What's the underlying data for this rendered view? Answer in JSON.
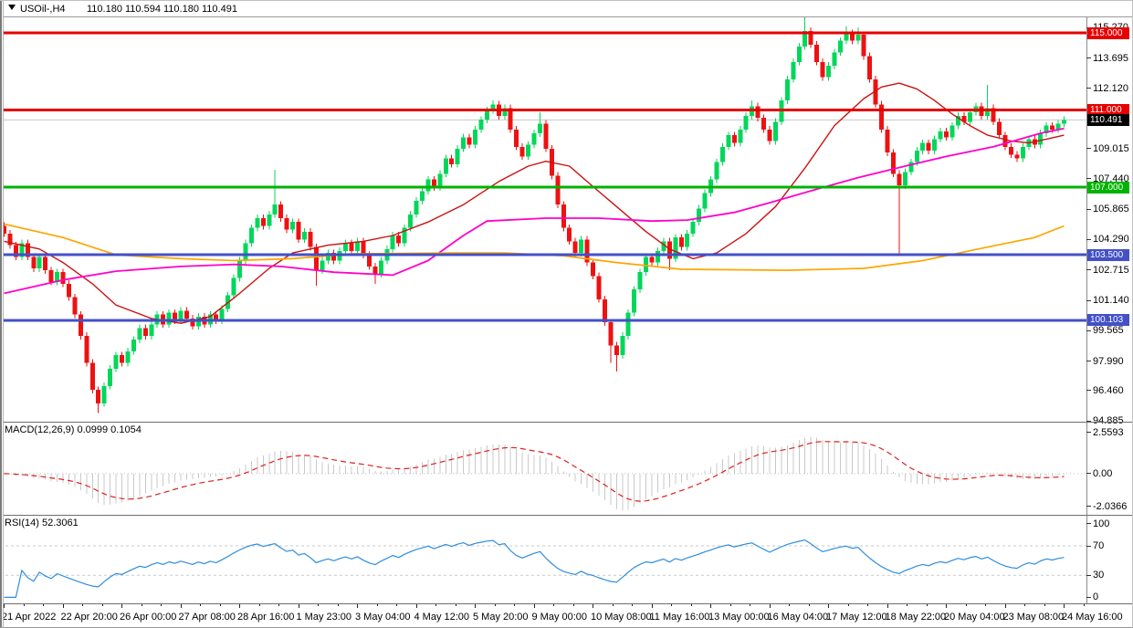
{
  "header": {
    "symbol": "USOil-,H4",
    "ohlc": "110.180 110.594 110.180 110.491"
  },
  "colors": {
    "bull_candle": "#00d75a",
    "bear_candle": "#ee1111",
    "bid_line": "#c8c8c8",
    "histogram": "#c8c8c8",
    "macd_signal": "#e02020",
    "rsi_line": "#2e8de0",
    "rsi_levels": "#c8c8c8",
    "resistance_red": "#e60000",
    "support_green": "#00b300",
    "support_blue": "#4350c8",
    "bid_badge": "#000000"
  },
  "chart_data": [
    {
      "type": "candlestick",
      "title": "USOil-,H4",
      "ylim": [
        94.85,
        115.81
      ],
      "y_ticks": [
        {
          "label": "115.270",
          "value": 115.27
        },
        {
          "label": "113.695",
          "value": 113.695
        },
        {
          "label": "112.120",
          "value": 112.12
        },
        {
          "label": "109.015",
          "value": 109.015
        },
        {
          "label": "107.440",
          "value": 107.44
        },
        {
          "label": "105.865",
          "value": 105.865
        },
        {
          "label": "104.290",
          "value": 104.29
        },
        {
          "label": "102.715",
          "value": 102.715
        },
        {
          "label": "101.140",
          "value": 101.14
        },
        {
          "label": "99.565",
          "value": 99.565
        },
        {
          "label": "97.990",
          "value": 97.99
        },
        {
          "label": "96.460",
          "value": 96.46
        },
        {
          "label": "94.885",
          "value": 94.885
        }
      ],
      "levels": [
        {
          "label": "115.000",
          "value": 115.0,
          "color": "#e60000"
        },
        {
          "label": "111.000",
          "value": 111.0,
          "color": "#e60000"
        },
        {
          "label": "107.000",
          "value": 107.0,
          "color": "#00b300"
        },
        {
          "label": "103.500",
          "value": 103.5,
          "color": "#4350c8"
        },
        {
          "label": "100.103",
          "value": 100.103,
          "color": "#4350c8"
        }
      ],
      "bid": {
        "label": "110.491",
        "value": 110.491
      },
      "first_open": 105.0,
      "default_wick": 0.18,
      "closes": [
        104.6,
        104.0,
        103.4,
        104.1,
        103.4,
        102.8,
        103.4,
        102.7,
        102.1,
        102.6,
        102.0,
        101.3,
        100.4,
        99.3,
        97.9,
        96.5,
        95.8,
        96.7,
        97.6,
        98.3,
        97.9,
        98.5,
        99.1,
        99.7,
        99.3,
        99.9,
        100.4,
        99.9,
        100.5,
        100.1,
        100.6,
        100.2,
        99.8,
        100.3,
        99.9,
        100.4,
        100.1,
        100.7,
        101.4,
        102.3,
        103.2,
        104.1,
        104.9,
        105.4,
        105.0,
        105.6,
        106.1,
        105.4,
        104.8,
        105.2,
        104.3,
        104.7,
        103.9,
        102.7,
        103.2,
        103.6,
        103.2,
        103.7,
        104.1,
        103.7,
        104.2,
        103.5,
        102.9,
        102.5,
        103.2,
        103.8,
        104.5,
        104.1,
        104.9,
        105.6,
        106.3,
        106.8,
        107.4,
        107.0,
        107.7,
        108.5,
        108.2,
        109.0,
        109.6,
        109.2,
        110.0,
        110.5,
        111.0,
        111.3,
        110.7,
        111.1,
        110.0,
        109.1,
        108.6,
        109.2,
        109.8,
        110.3,
        109.0,
        107.6,
        106.1,
        104.9,
        104.2,
        103.6,
        104.3,
        103.1,
        102.4,
        101.2,
        100.0,
        98.8,
        98.3,
        99.3,
        100.5,
        101.7,
        102.6,
        103.4,
        103.1,
        103.7,
        104.2,
        103.3,
        104.4,
        103.9,
        104.6,
        105.2,
        105.9,
        106.7,
        107.4,
        108.3,
        109.1,
        109.7,
        109.3,
        110.0,
        110.7,
        111.2,
        110.6,
        110.0,
        109.4,
        110.4,
        111.5,
        112.6,
        113.5,
        114.3,
        115.1,
        114.4,
        113.5,
        112.7,
        113.3,
        114.0,
        114.6,
        115.0,
        114.6,
        114.9,
        113.8,
        112.6,
        111.3,
        110.0,
        108.8,
        107.7,
        107.1,
        107.8,
        108.3,
        108.9,
        109.3,
        108.9,
        109.5,
        109.9,
        109.6,
        110.2,
        110.7,
        110.4,
        110.9,
        111.2,
        110.7,
        111.1,
        110.4,
        109.7,
        109.1,
        108.7,
        108.5,
        109.1,
        109.5,
        109.2,
        109.8,
        110.2,
        110.0,
        110.3,
        110.491
      ],
      "wick_overrides": {
        "16": {
          "low": 95.3
        },
        "46": {
          "high": 107.9
        },
        "53": {
          "low": 101.9
        },
        "63": {
          "low": 102.0
        },
        "83": {
          "high": 111.5
        },
        "91": {
          "high": 110.9
        },
        "103": {
          "low": 97.9
        },
        "104": {
          "low": 97.45
        },
        "113": {
          "low": 102.7
        },
        "127": {
          "high": 111.5
        },
        "136": {
          "high": 115.8
        },
        "143": {
          "high": 115.35
        },
        "145": {
          "high": 115.3
        },
        "152": {
          "low": 103.55
        },
        "167": {
          "high": 112.3
        }
      },
      "moving_averages": [
        {
          "name": "fast-ma",
          "color": "#cc1111",
          "points": [
            [
              0,
              104.2
            ],
            [
              6,
              103.8
            ],
            [
              10,
              103.1
            ],
            [
              15,
              102.0
            ],
            [
              19,
              100.9
            ],
            [
              25,
              100.2
            ],
            [
              30,
              99.95
            ],
            [
              35,
              100.3
            ],
            [
              40,
              101.5
            ],
            [
              45,
              102.8
            ],
            [
              49,
              103.6
            ],
            [
              55,
              104.0
            ],
            [
              61,
              104.2
            ],
            [
              66,
              104.5
            ],
            [
              72,
              105.2
            ],
            [
              78,
              106.1
            ],
            [
              84,
              107.3
            ],
            [
              89,
              108.1
            ],
            [
              92,
              108.35
            ],
            [
              96,
              108.1
            ],
            [
              99,
              107.3
            ],
            [
              104,
              106.0
            ],
            [
              109,
              104.7
            ],
            [
              113,
              103.8
            ],
            [
              117,
              103.3
            ],
            [
              121,
              103.6
            ],
            [
              126,
              104.6
            ],
            [
              131,
              106.0
            ],
            [
              136,
              108.0
            ],
            [
              141,
              110.2
            ],
            [
              146,
              111.6
            ],
            [
              149,
              112.2
            ],
            [
              152,
              112.4
            ],
            [
              155,
              112.1
            ],
            [
              158,
              111.5
            ],
            [
              161,
              110.8
            ],
            [
              164,
              110.2
            ],
            [
              167,
              109.7
            ],
            [
              171,
              109.4
            ],
            [
              174,
              109.3
            ],
            [
              177,
              109.5
            ],
            [
              180,
              109.7
            ]
          ]
        },
        {
          "name": "medium-ma",
          "color": "#ff00cc",
          "points": [
            [
              0,
              101.5
            ],
            [
              10,
              102.2
            ],
            [
              19,
              102.65
            ],
            [
              30,
              102.9
            ],
            [
              39,
              103.0
            ],
            [
              47,
              102.9
            ],
            [
              56,
              102.6
            ],
            [
              66,
              102.45
            ],
            [
              72,
              103.2
            ],
            [
              78,
              104.5
            ],
            [
              82,
              105.25
            ],
            [
              92,
              105.4
            ],
            [
              101,
              105.4
            ],
            [
              110,
              105.25
            ],
            [
              116,
              105.3
            ],
            [
              124,
              105.7
            ],
            [
              130,
              106.2
            ],
            [
              138,
              106.9
            ],
            [
              145,
              107.5
            ],
            [
              153,
              108.1
            ],
            [
              160,
              108.6
            ],
            [
              168,
              109.1
            ],
            [
              176,
              109.8
            ],
            [
              180,
              110.05
            ]
          ]
        },
        {
          "name": "slow-ma",
          "color": "#ffa500",
          "points": [
            [
              0,
              105.1
            ],
            [
              10,
              104.4
            ],
            [
              19,
              103.5
            ],
            [
              30,
              103.3
            ],
            [
              39,
              103.2
            ],
            [
              49,
              103.3
            ],
            [
              59,
              103.55
            ],
            [
              76,
              103.6
            ],
            [
              85,
              103.6
            ],
            [
              95,
              103.45
            ],
            [
              104,
              103.1
            ],
            [
              115,
              102.75
            ],
            [
              133,
              102.7
            ],
            [
              146,
              102.8
            ],
            [
              156,
              103.2
            ],
            [
              167,
              103.9
            ],
            [
              175,
              104.4
            ],
            [
              180,
              105.0
            ]
          ]
        }
      ]
    },
    {
      "type": "macd",
      "label": "MACD(12,26,9) 0.0999 0.1054",
      "fast": 12,
      "slow": 26,
      "signal": 9,
      "current_values": [
        0.0999,
        0.1054
      ],
      "ylim": [
        -2.51,
        3.18
      ],
      "y_ticks": [
        {
          "label": "2.5593",
          "value": 2.5593
        },
        {
          "label": "0.00",
          "value": 0
        },
        {
          "label": "-2.0366",
          "value": -2.0366
        }
      ]
    },
    {
      "type": "rsi",
      "label": "RSI(14) 52.3061",
      "period": 14,
      "current_value": 52.3061,
      "levels": [
        70,
        30
      ],
      "ylim": [
        -7,
        111
      ],
      "y_ticks": [
        {
          "label": "100",
          "value": 100
        },
        {
          "label": "70",
          "value": 70
        },
        {
          "label": "30",
          "value": 30
        },
        {
          "label": "0",
          "value": 0
        }
      ]
    }
  ],
  "time_axis": {
    "bars_per_label": 10,
    "labels": [
      "21 Apr 2022",
      "22 Apr 20:00",
      "26 Apr 00:00",
      "27 Apr 08:00",
      "28 Apr 16:00",
      "1 May 23:00",
      "3 May 04:00",
      "4 May 12:00",
      "5 May 20:00",
      "9 May 00:00",
      "10 May 08:00",
      "11 May 16:00",
      "13 May 00:00",
      "16 May 04:00",
      "17 May 12:00",
      "18 May 22:00",
      "20 May 04:00",
      "23 May 08:00",
      "24 May 16:00"
    ]
  }
}
